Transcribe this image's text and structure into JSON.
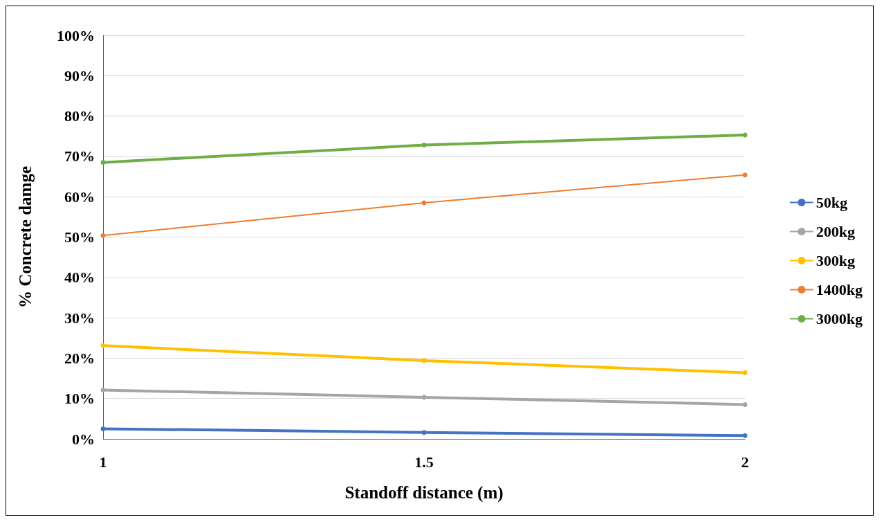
{
  "chart_data": {
    "type": "line",
    "xlabel": "Standoff distance (m)",
    "ylabel": "% Concrete damge",
    "x": [
      1,
      1.5,
      2
    ],
    "xlim": [
      1,
      2
    ],
    "xticks": [
      1,
      1.5,
      2
    ],
    "ylim": [
      0,
      100
    ],
    "yticks": [
      {
        "value": 0,
        "label": "0%"
      },
      {
        "value": 10,
        "label": "10%"
      },
      {
        "value": 20,
        "label": "20%"
      },
      {
        "value": 30,
        "label": "30%"
      },
      {
        "value": 40,
        "label": "40%"
      },
      {
        "value": 50,
        "label": "50%"
      },
      {
        "value": 60,
        "label": "60%"
      },
      {
        "value": 70,
        "label": "70%"
      },
      {
        "value": 80,
        "label": "80%"
      },
      {
        "value": 90,
        "label": "90%"
      },
      {
        "value": 100,
        "label": "100%"
      }
    ],
    "grid": "y",
    "legend": "right",
    "marker": "circle",
    "line_style": "solid",
    "series": [
      {
        "name": "50kg",
        "color": "#4472c4",
        "values": [
          2.5,
          1.6,
          0.8
        ]
      },
      {
        "name": "200kg",
        "color": "#a5a5a5",
        "values": [
          12.1,
          10.3,
          8.5
        ]
      },
      {
        "name": "300kg",
        "color": "#ffc000",
        "values": [
          23.1,
          19.4,
          16.4
        ]
      },
      {
        "name": "1400kg",
        "color": "#ed7d31",
        "values": [
          50.4,
          58.5,
          65.4
        ]
      },
      {
        "name": "3000kg",
        "color": "#70ad47",
        "values": [
          68.5,
          72.8,
          75.3
        ]
      }
    ]
  }
}
